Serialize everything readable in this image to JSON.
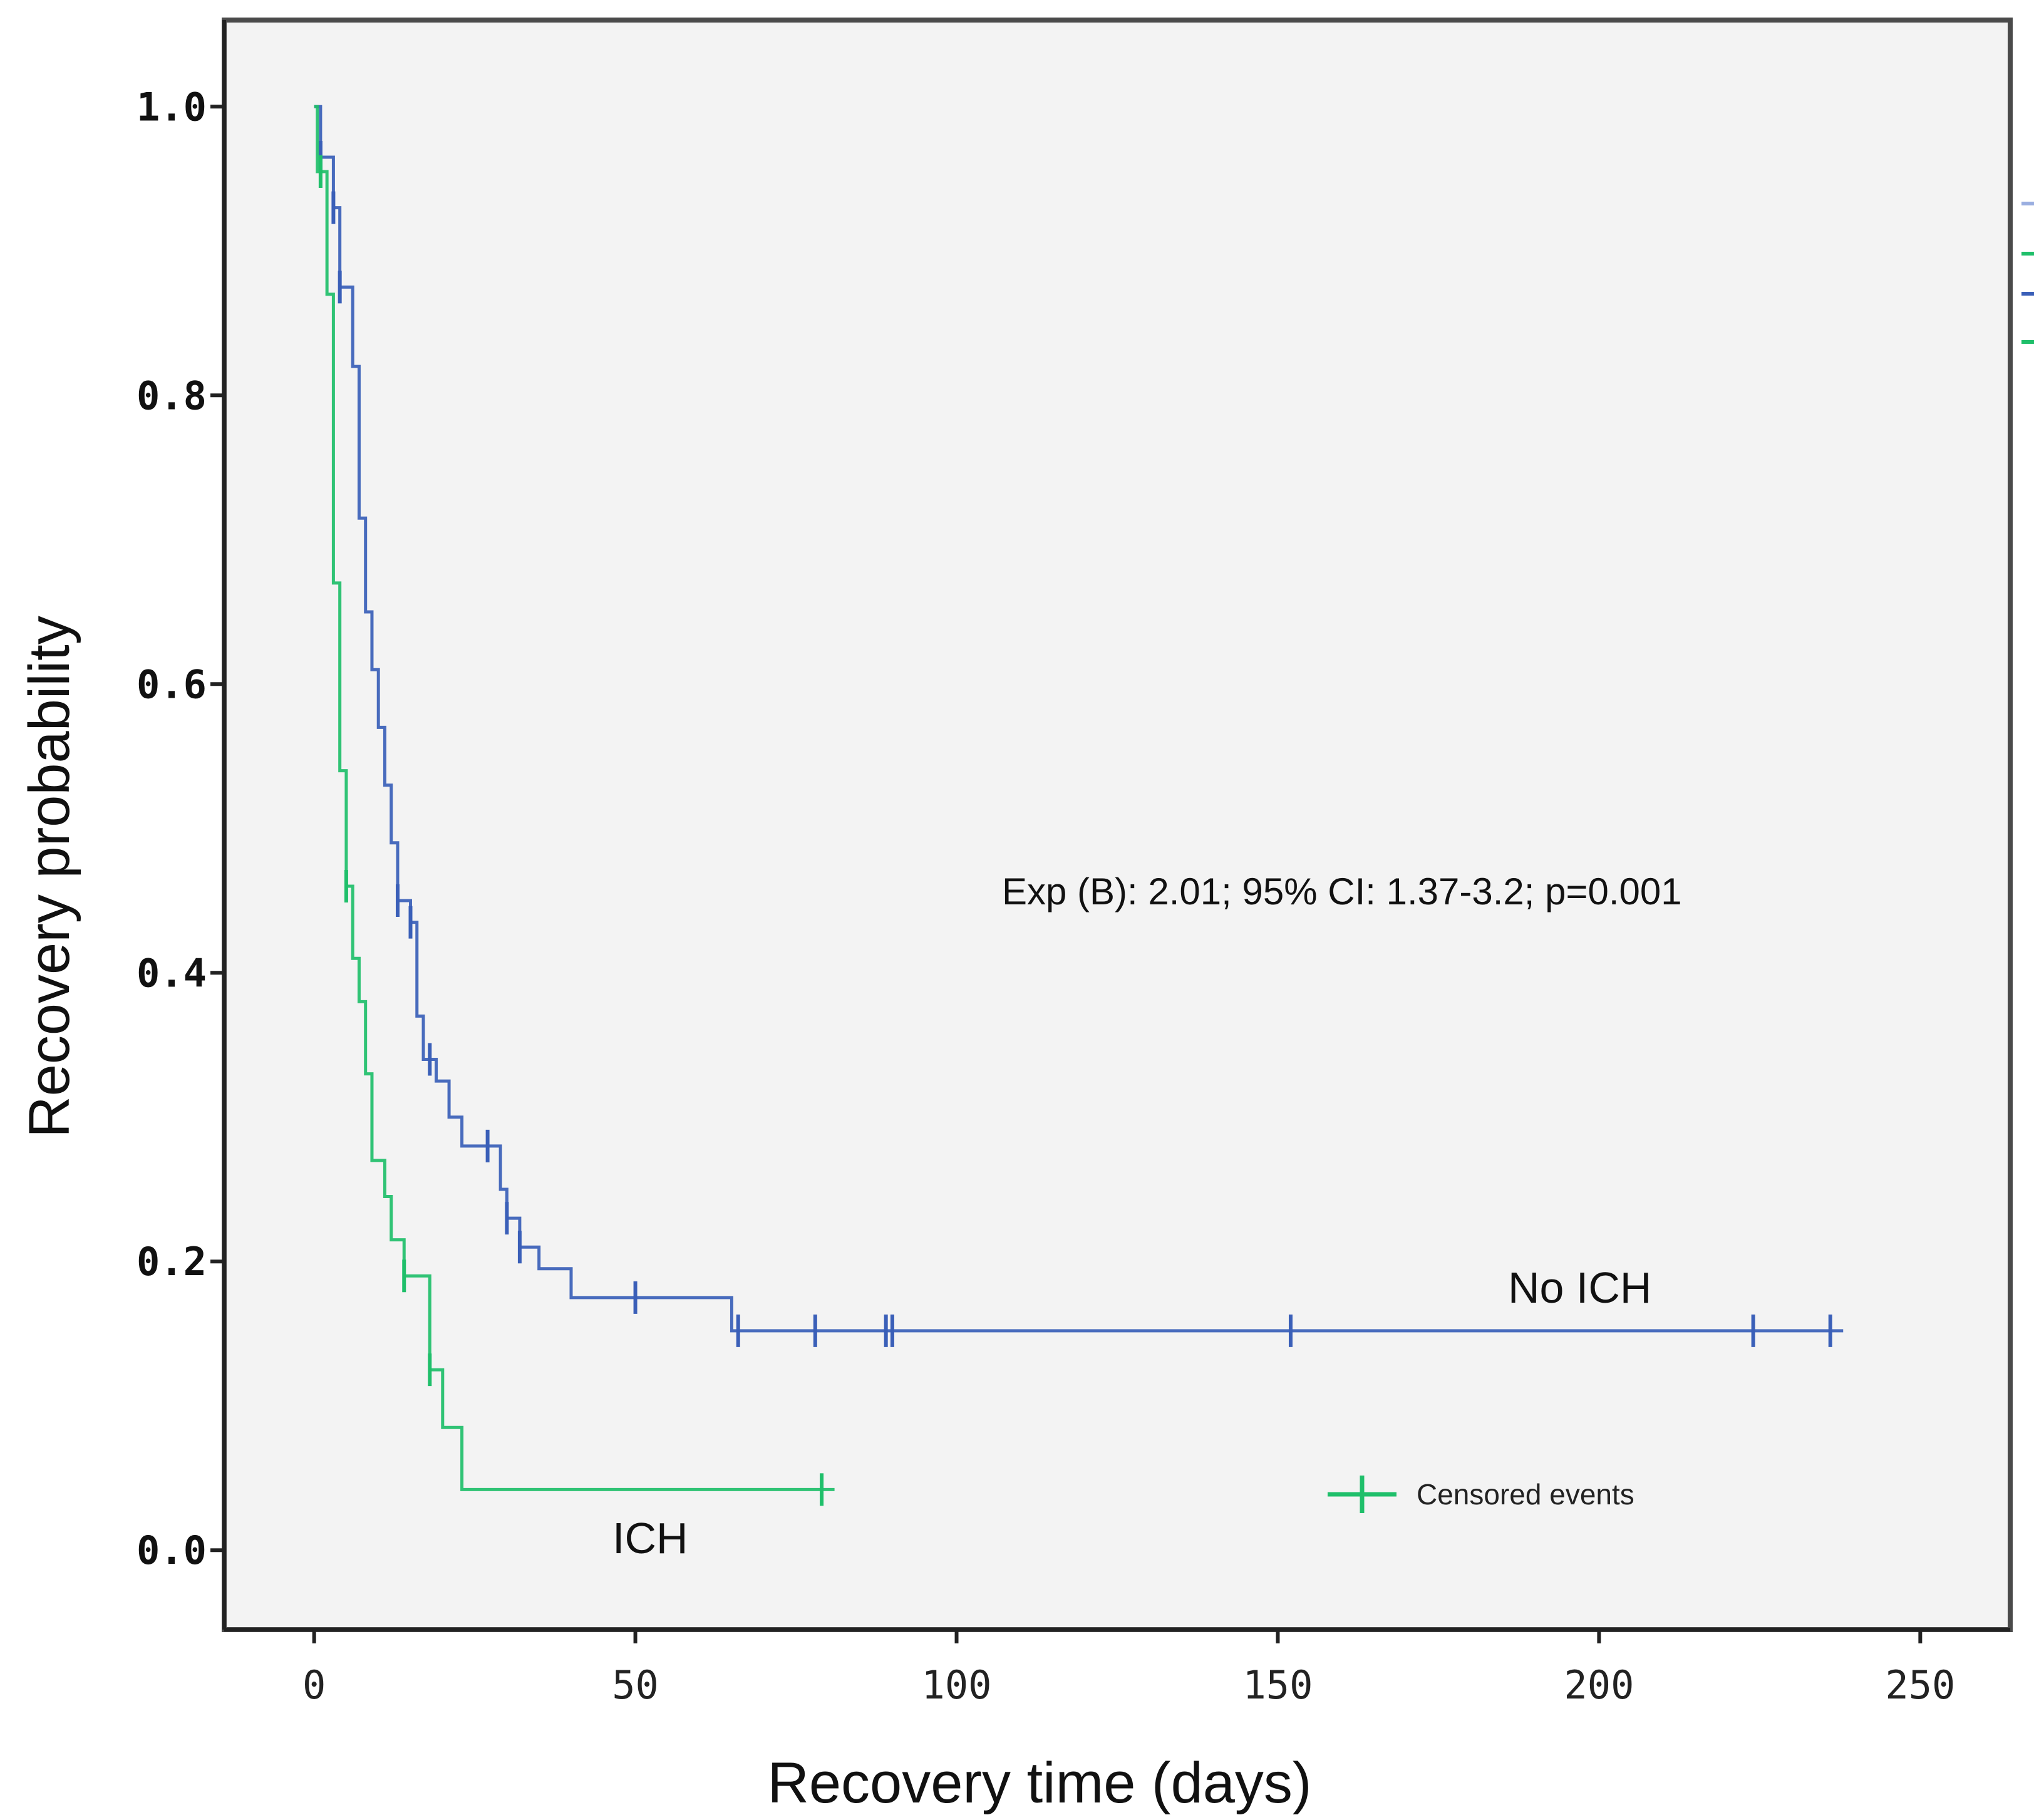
{
  "chart_data": {
    "type": "line",
    "subtype": "kaplan-meier step",
    "title": "",
    "xlabel": "Recovery time (days)",
    "ylabel": "Recovery probability",
    "xlim": [
      -14,
      264
    ],
    "ylim": [
      -0.055,
      1.06
    ],
    "xticks": [
      0,
      50,
      100,
      150,
      200,
      250
    ],
    "xtick_labels": [
      "0",
      "50",
      "100",
      "150",
      "200",
      "250"
    ],
    "yticks": [
      0.0,
      0.2,
      0.4,
      0.6,
      0.8,
      1.0
    ],
    "ytick_labels": [
      "0.0",
      "0.2",
      "0.4",
      "0.6",
      "0.8",
      "1.0"
    ],
    "grid": false,
    "legend_position": "lower-right",
    "series": [
      {
        "name": "No ICH",
        "color": "#3a5fb8",
        "steps": [
          [
            0,
            1.0
          ],
          [
            1,
            0.965
          ],
          [
            3,
            0.93
          ],
          [
            4,
            0.875
          ],
          [
            6,
            0.82
          ],
          [
            7,
            0.715
          ],
          [
            8,
            0.65
          ],
          [
            9,
            0.61
          ],
          [
            10,
            0.57
          ],
          [
            11,
            0.53
          ],
          [
            12,
            0.49
          ],
          [
            13,
            0.45
          ],
          [
            15,
            0.435
          ],
          [
            16,
            0.37
          ],
          [
            17,
            0.34
          ],
          [
            19,
            0.325
          ],
          [
            21,
            0.3
          ],
          [
            23,
            0.28
          ],
          [
            27,
            0.28
          ],
          [
            29,
            0.25
          ],
          [
            30,
            0.23
          ],
          [
            32,
            0.21
          ],
          [
            35,
            0.195
          ],
          [
            40,
            0.175
          ],
          [
            64,
            0.175
          ],
          [
            65,
            0.152
          ],
          [
            238,
            0.152
          ]
        ],
        "censored": [
          1,
          3,
          4,
          13,
          15,
          18,
          27,
          30,
          32,
          50,
          66,
          78,
          89,
          90,
          152,
          224,
          236
        ]
      },
      {
        "name": "ICH",
        "color": "#1fbf6a",
        "steps": [
          [
            0,
            1.0
          ],
          [
            0.5,
            0.955
          ],
          [
            2,
            0.87
          ],
          [
            3,
            0.67
          ],
          [
            4,
            0.54
          ],
          [
            5,
            0.46
          ],
          [
            6,
            0.41
          ],
          [
            7,
            0.38
          ],
          [
            8,
            0.33
          ],
          [
            9,
            0.27
          ],
          [
            11,
            0.245
          ],
          [
            12,
            0.215
          ],
          [
            14,
            0.19
          ],
          [
            18,
            0.125
          ],
          [
            20,
            0.085
          ],
          [
            23,
            0.042
          ],
          [
            81,
            0.042
          ]
        ],
        "censored": [
          1,
          5,
          14,
          18,
          79
        ]
      }
    ],
    "curve_labels": [
      "No ICH",
      "ICH"
    ],
    "annotation": "Exp (B): 2.01; 95% CI: 1.37-3.2; p=0.001",
    "legend": [
      {
        "label": "Censored events",
        "color": "#1fbf6a",
        "marker": "+"
      }
    ]
  }
}
